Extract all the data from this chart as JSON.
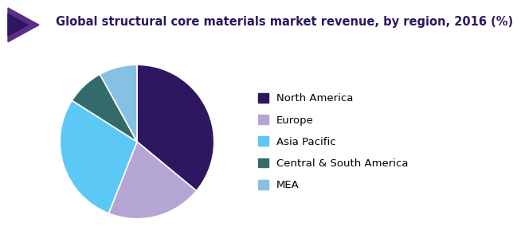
{
  "title": "Global structural core materials market revenue, by region, 2016 (%)",
  "labels": [
    "North America",
    "Europe",
    "Asia Pacific",
    "Central & South America",
    "MEA"
  ],
  "values": [
    36,
    20,
    28,
    8,
    8
  ],
  "colors": [
    "#2e1760",
    "#b3a5d4",
    "#5bc8f5",
    "#336b6b",
    "#85c1e2"
  ],
  "startangle": 90,
  "title_fontsize": 10.5,
  "legend_fontsize": 9.5,
  "background_color": "#ffffff",
  "header_purple": "#5c2d8c",
  "header_dark": "#2e1760",
  "line_color": "#7b3fa0"
}
